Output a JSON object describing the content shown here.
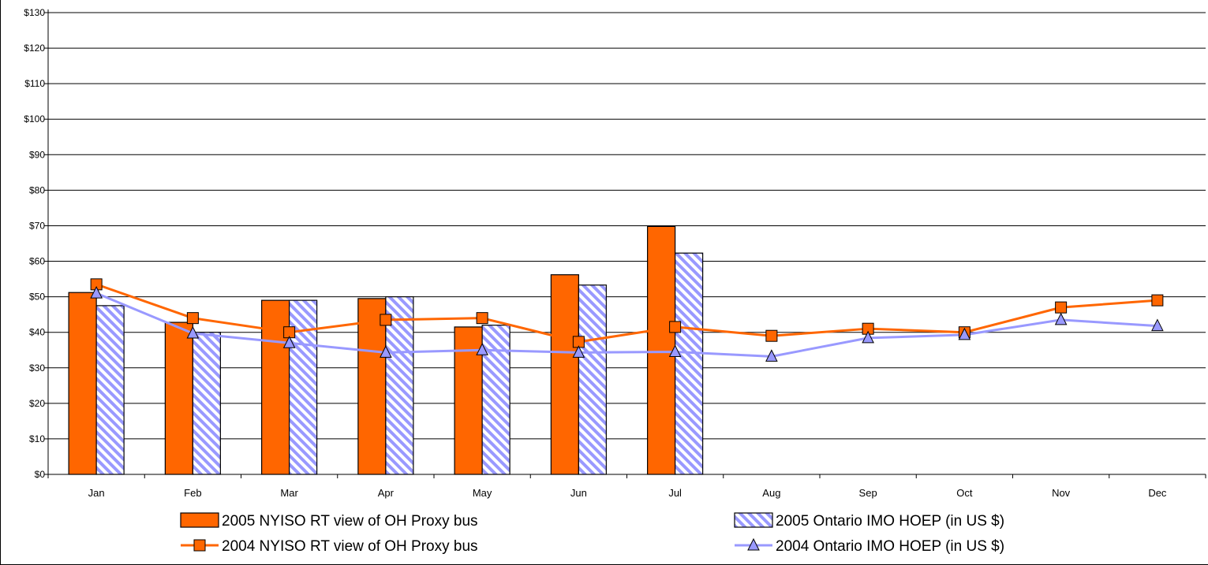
{
  "chart_data": {
    "type": "bar",
    "title": "",
    "xlabel": "",
    "ylabel": "",
    "ylim": [
      0,
      130
    ],
    "y_tick_step": 10,
    "y_tick_labels": [
      "$0",
      "$10",
      "$20",
      "$30",
      "$40",
      "$50",
      "$60",
      "$70",
      "$80",
      "$90",
      "$100",
      "$110",
      "$120",
      "$130"
    ],
    "grid": true,
    "legend_position": "bottom",
    "categories": [
      "Jan",
      "Feb",
      "Mar",
      "Apr",
      "May",
      "Jun",
      "Jul",
      "Aug",
      "Sep",
      "Oct",
      "Nov",
      "Dec"
    ],
    "series": [
      {
        "name": "2005 NYISO RT view of OH Proxy bus",
        "kind": "bar",
        "color": "#ff6600",
        "values": [
          51.2,
          42.8,
          49.0,
          49.5,
          41.5,
          56.2,
          69.8,
          null,
          null,
          null,
          null,
          null
        ]
      },
      {
        "name": "2005 Ontario IMO HOEP (in US $)",
        "kind": "bar",
        "color": "#9999ff",
        "pattern": "diagonal-hatch",
        "values": [
          47.5,
          40.0,
          49.0,
          50.0,
          42.0,
          53.3,
          62.3,
          null,
          null,
          null,
          null,
          null
        ]
      },
      {
        "name": "2004 NYISO RT view of OH Proxy bus",
        "kind": "line",
        "marker": "square",
        "color": "#ff6600",
        "values": [
          53.5,
          44.0,
          40.0,
          43.5,
          44.0,
          37.3,
          41.5,
          39.0,
          41.0,
          40.0,
          47.0,
          49.0
        ]
      },
      {
        "name": "2004 Ontario IMO HOEP (in US $)",
        "kind": "line",
        "marker": "triangle",
        "color": "#9999ff",
        "values": [
          51.0,
          39.7,
          37.0,
          34.3,
          35.0,
          34.3,
          34.5,
          33.2,
          38.4,
          39.3,
          43.5,
          41.8
        ]
      }
    ]
  }
}
